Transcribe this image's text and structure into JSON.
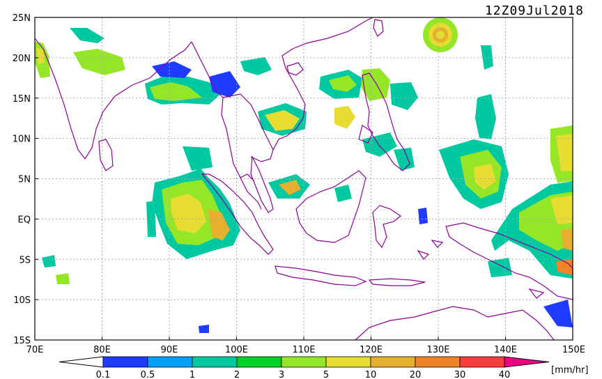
{
  "title": "12Z09Jul2018",
  "units_label": "[mm/hr]",
  "lat_labels": [
    "25N",
    "20N",
    "15N",
    "10N",
    "5N",
    "EQ",
    "5S",
    "10S",
    "15S"
  ],
  "lon_labels": [
    "70E",
    "80E",
    "90E",
    "100E",
    "110E",
    "120E",
    "130E",
    "140E",
    "150E"
  ],
  "colorbar": {
    "ticks": [
      "0.1",
      "0.5",
      "1",
      "2",
      "3",
      "5",
      "10",
      "20",
      "30",
      "40"
    ],
    "colors": [
      "#1e3cff",
      "#00a0ff",
      "#00c8a0",
      "#00d228",
      "#96e628",
      "#e6dc32",
      "#e6af2d",
      "#f08228",
      "#fa3c3c",
      "#f00082"
    ]
  },
  "coast_color": "#8c0096",
  "grid_color": "#aaaaaa"
}
